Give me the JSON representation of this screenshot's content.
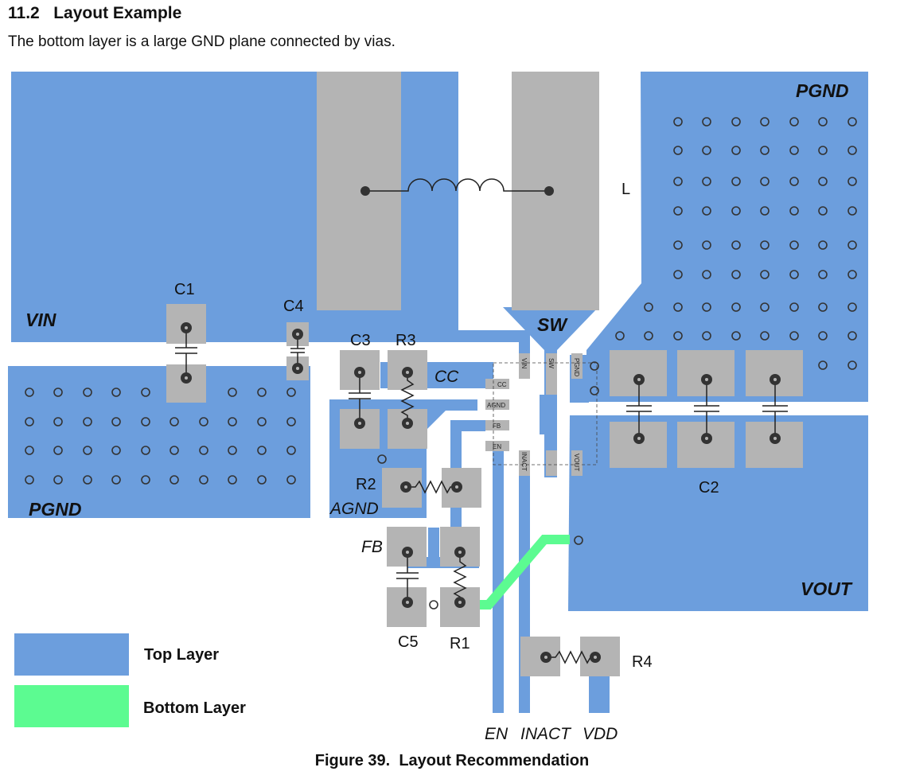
{
  "heading": {
    "number": "11.2",
    "title": "Layout Example"
  },
  "intro_text": "The bottom layer is a large GND plane connected by vias.",
  "caption": "Figure 39.  Layout Recommendation",
  "colors": {
    "top_layer": "#6c9edd",
    "bottom_layer": "#5cfb91",
    "pad": "#b4b4b4",
    "via": "#333333"
  },
  "nets": {
    "vin": "VIN",
    "sw": "SW",
    "pgnd_top": "PGND",
    "pgnd_left": "PGND",
    "cc": "CC",
    "agnd": "AGND",
    "fb": "FB",
    "vout": "VOUT",
    "en": "EN",
    "inact": "INACT",
    "vdd": "VDD"
  },
  "components": {
    "inductor": "L",
    "c1": "C1",
    "c2": "C2",
    "c3": "C3",
    "c4": "C4",
    "c5": "C5",
    "r1": "R1",
    "r2": "R2",
    "r3": "R3",
    "r4": "R4"
  },
  "ic_pins": {
    "cc": "CC",
    "agnd": "AGND",
    "fb": "FB",
    "en": "EN",
    "vin": "VIN",
    "sw": "SW",
    "pgnd": "PGND",
    "inact": "INACT",
    "vout": "VOUT"
  },
  "legend": {
    "top_layer": "Top Layer",
    "bottom_layer": "Bottom Layer"
  }
}
